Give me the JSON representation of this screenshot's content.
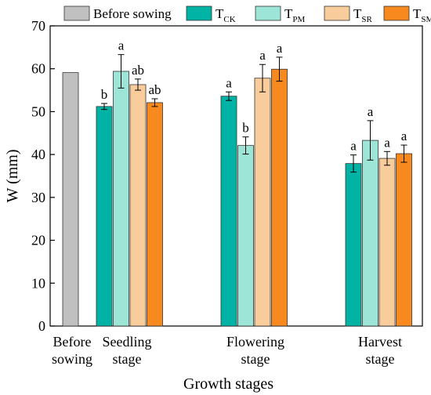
{
  "chart_data": {
    "type": "bar",
    "ylabel": "W (mm)",
    "xlabel": "Growth stages",
    "ylim": [
      0,
      70
    ],
    "yticks": [
      0,
      10,
      20,
      30,
      40,
      50,
      60,
      70
    ],
    "grid": false,
    "legend_position": "top",
    "legend": [
      {
        "main": "Before sowing",
        "sub": "",
        "color": "#c0c0c0"
      },
      {
        "main": "T",
        "sub": "CK",
        "color": "#00b3a4"
      },
      {
        "main": "T",
        "sub": "PM",
        "color": "#9de5d6"
      },
      {
        "main": "T",
        "sub": "SR",
        "color": "#f9cc9c"
      },
      {
        "main": "T",
        "sub": "SM",
        "color": "#f7891e"
      }
    ],
    "groups": [
      {
        "label_lines": [
          "Before",
          "sowing"
        ],
        "bars": [
          {
            "series": "Before sowing",
            "value": 59.1,
            "error": null,
            "letter": ""
          }
        ]
      },
      {
        "label_lines": [
          "Seedling",
          "stage"
        ],
        "bars": [
          {
            "series": "TCK",
            "value": 51.2,
            "error": 0.7,
            "letter": "b"
          },
          {
            "series": "TPM",
            "value": 59.4,
            "error": 3.9,
            "letter": "a"
          },
          {
            "series": "TSR",
            "value": 56.3,
            "error": 1.3,
            "letter": "ab"
          },
          {
            "series": "TSM",
            "value": 52.1,
            "error": 0.9,
            "letter": "ab"
          }
        ]
      },
      {
        "label_lines": [
          "Flowering",
          "stage"
        ],
        "bars": [
          {
            "series": "TCK",
            "value": 53.6,
            "error": 1.0,
            "letter": "a"
          },
          {
            "series": "TPM",
            "value": 42.1,
            "error": 2.0,
            "letter": "b"
          },
          {
            "series": "TSR",
            "value": 57.8,
            "error": 3.2,
            "letter": "a"
          },
          {
            "series": "TSM",
            "value": 59.9,
            "error": 2.8,
            "letter": "a"
          }
        ]
      },
      {
        "label_lines": [
          "Harvest",
          "stage"
        ],
        "bars": [
          {
            "series": "TCK",
            "value": 37.9,
            "error": 2.0,
            "letter": "a"
          },
          {
            "series": "TPM",
            "value": 43.3,
            "error": 4.6,
            "letter": "a"
          },
          {
            "series": "TSR",
            "value": 39.1,
            "error": 1.6,
            "letter": "a"
          },
          {
            "series": "TSM",
            "value": 40.2,
            "error": 2.0,
            "letter": "a"
          }
        ]
      }
    ]
  }
}
